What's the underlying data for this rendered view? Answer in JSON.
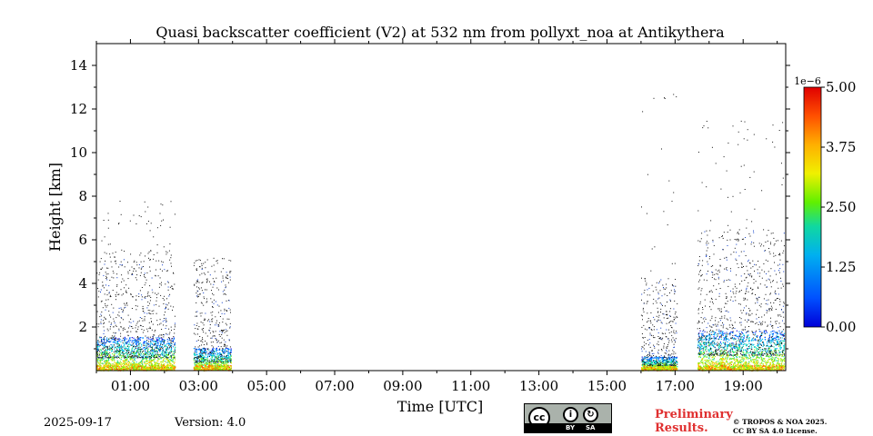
{
  "chart_data": {
    "type": "heatmap",
    "title": "Quasi backscatter coefficient (V2) at 532 nm from pollyxt_noa at Antikythera",
    "xlabel": "Time [UTC]",
    "ylabel": "Height [km]",
    "x_range_hours": [
      0,
      20.25
    ],
    "ylim": [
      0,
      15
    ],
    "x_ticks": [
      "01:00",
      "03:00",
      "05:00",
      "07:00",
      "09:00",
      "11:00",
      "13:00",
      "15:00",
      "17:00",
      "19:00"
    ],
    "x_tick_hours": [
      1,
      3,
      5,
      7,
      9,
      11,
      13,
      15,
      17,
      19
    ],
    "y_ticks": [
      2,
      4,
      6,
      8,
      10,
      12,
      14
    ],
    "colorbar": {
      "exponent_label": "1e−6",
      "range": [
        0,
        5.0
      ],
      "ticks": [
        "0.00",
        "1.25",
        "2.50",
        "3.75",
        "5.00"
      ],
      "tick_values": [
        0,
        1.25,
        2.5,
        3.75,
        5.0
      ],
      "colormap": "jet"
    },
    "data_segments": [
      {
        "start_hour": 0.0,
        "end_hour": 2.3,
        "dense_top_km": 1.5,
        "scatter_top_km": 5.5,
        "sparse_max_km": 7.8
      },
      {
        "start_hour": 2.85,
        "end_hour": 3.95,
        "dense_top_km": 1.0,
        "scatter_top_km": 4.8,
        "sparse_max_km": 5.2
      },
      {
        "start_hour": 16.0,
        "end_hour": 17.05,
        "dense_top_km": 0.6,
        "scatter_top_km": 4.3,
        "sparse_max_km": 12.8
      },
      {
        "start_hour": 17.65,
        "end_hour": 20.2,
        "dense_top_km": 1.8,
        "scatter_top_km": 6.5,
        "sparse_max_km": 11.5
      }
    ],
    "grid": false
  },
  "footer": {
    "date": "2025-09-17",
    "version": "Version: 4.0",
    "preliminary_line1": "Preliminary",
    "preliminary_line2": "Results.",
    "copyright_line1": "© TROPOS & NOA 2025.",
    "copyright_line2": "CC BY SA 4.0 License.",
    "license_badge": {
      "cc": "cc",
      "by": "BY",
      "sa": "SA"
    }
  }
}
